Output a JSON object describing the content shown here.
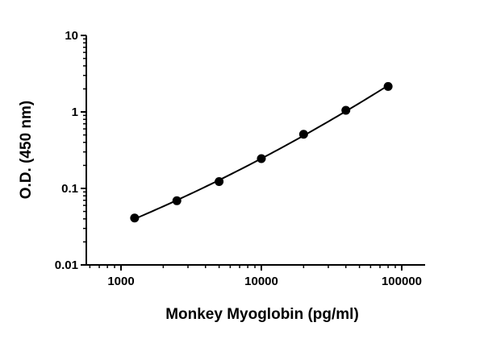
{
  "chart_data": {
    "type": "scatter",
    "xlabel": "Monkey Myoglobin (pg/ml)",
    "ylabel": "O.D. (450 nm)",
    "xscale": "log",
    "yscale": "log",
    "xlim": [
      500,
      200000
    ],
    "ylim": [
      0.01,
      10
    ],
    "x_ticks": [
      1000,
      10000,
      100000
    ],
    "x_tick_labels": [
      "1000",
      "10000",
      "100000"
    ],
    "y_ticks": [
      0.01,
      0.1,
      1,
      10
    ],
    "y_tick_labels": [
      "0.01",
      "0.1",
      "1",
      "10"
    ],
    "grid": false,
    "legend": "none",
    "series": [
      {
        "x": [
          1250,
          2500,
          5000,
          10000,
          20000,
          40000,
          80000
        ],
        "y": [
          0.041,
          0.069,
          0.123,
          0.245,
          0.51,
          1.05,
          2.15
        ],
        "marker": "circle",
        "fit_curve": true
      }
    ],
    "colors": {
      "points": "#000000",
      "curve": "#000000",
      "axes": "#000000"
    }
  }
}
